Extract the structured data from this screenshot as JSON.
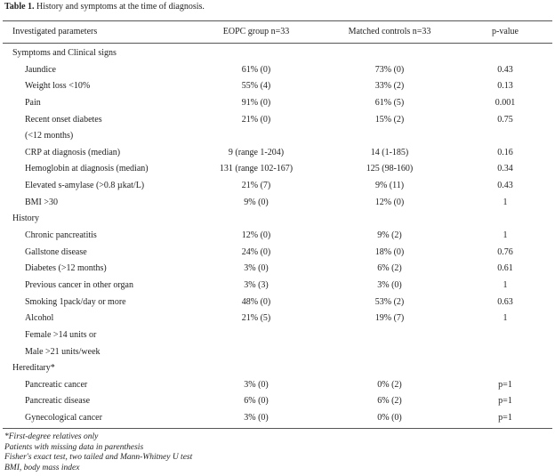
{
  "caption": {
    "label": "Table 1.",
    "text": "History and symptoms at the time of diagnosis."
  },
  "table": {
    "columns": [
      "Investigated parameters",
      "EOPC group n=33",
      "Matched controls n=33",
      "p-value"
    ],
    "sections": [
      {
        "title": "Symptoms and Clinical signs",
        "rows": [
          [
            "Jaundice",
            "61% (0)",
            "73% (0)",
            "0.43"
          ],
          [
            "Weight loss <10%",
            "55% (4)",
            "33% (2)",
            "0.13"
          ],
          [
            "Pain",
            "91% (0)",
            "61% (5)",
            "0.001"
          ],
          [
            "Recent onset diabetes",
            "21% (0)",
            "15% (2)",
            "0.75"
          ],
          [
            "(<12 months)"
          ],
          [
            "CRP at diagnosis (median)",
            "9 (range 1-204)",
            "14 (1-185)",
            "0.16"
          ],
          [
            "Hemoglobin at diagnosis (median)",
            "131 (range 102-167)",
            "125 (98-160)",
            "0.34"
          ],
          [
            "Elevated s-amylase (>0.8 µkat/L)",
            "21% (7)",
            "9% (11)",
            "0.43"
          ],
          [
            "BMI >30",
            "9% (0)",
            "12% (0)",
            "1"
          ]
        ]
      },
      {
        "title": "History",
        "rows": [
          [
            "Chronic pancreatitis",
            "12% (0)",
            "9% (2)",
            "1"
          ],
          [
            "Gallstone disease",
            "24% (0)",
            "18% (0)",
            "0.76"
          ],
          [
            "Diabetes (>12 months)",
            "3% (0)",
            "6% (2)",
            "0.61"
          ],
          [
            "Previous cancer in other organ",
            "3% (3)",
            "3% (0)",
            "1"
          ],
          [
            "Smoking 1pack/day or more",
            "48% (0)",
            "53% (2)",
            "0.63"
          ],
          [
            "Alcohol",
            "21% (5)",
            "19% (7)",
            "1"
          ],
          [
            "Female >14 units or"
          ],
          [
            "Male >21 units/week"
          ]
        ]
      },
      {
        "title": "Hereditary*",
        "rows": [
          [
            "Pancreatic cancer",
            "3% (0)",
            "0% (2)",
            "p=1"
          ],
          [
            "Pancreatic disease",
            "6% (0)",
            "6% (2)",
            "p=1"
          ],
          [
            "Gynecological cancer",
            "3% (0)",
            "0% (0)",
            "p=1"
          ]
        ]
      }
    ]
  },
  "footnotes": [
    "*First-degree relatives only",
    "Patients with missing data in parenthesis",
    "Fisher's exact test, two tailed and Mann-Whitney U test",
    "BMI, body mass index"
  ]
}
